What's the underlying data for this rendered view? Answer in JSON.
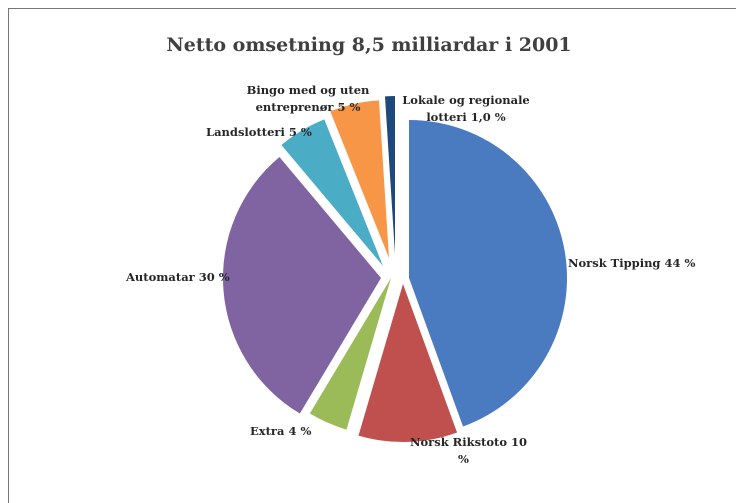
{
  "chart_data": {
    "type": "pie",
    "title": "Netto omsetning 8,5 milliardar i 2001",
    "slices": [
      {
        "name": "Norsk Tipping",
        "value": 44,
        "label": [
          "Norsk Tipping  44 %"
        ],
        "color": "#4a7bc1"
      },
      {
        "name": "Norsk Rikstoto",
        "value": 10,
        "label": [
          "Norsk Rikstoto  10",
          "%"
        ],
        "color": "#c0504d"
      },
      {
        "name": "Extra",
        "value": 4,
        "label": [
          "Extra 4 %"
        ],
        "color": "#9bbb59"
      },
      {
        "name": "Automatar",
        "value": 30,
        "label": [
          "Automatar 30 %"
        ],
        "color": "#8064a2"
      },
      {
        "name": "Landslotteri",
        "value": 5,
        "label": [
          "Landslotteri 5 %"
        ],
        "color": "#4bacc6"
      },
      {
        "name": "Bingo med og uten entreprenør",
        "value": 5,
        "label": [
          "Bingo med og uten",
          "entreprenør 5 %"
        ],
        "color": "#f79646"
      },
      {
        "name": "Lokale og regionale lotteri",
        "value": 1,
        "label": [
          "Lokale og regionale",
          "lotteri 1,0 %"
        ],
        "color": "#1f497d"
      }
    ]
  }
}
